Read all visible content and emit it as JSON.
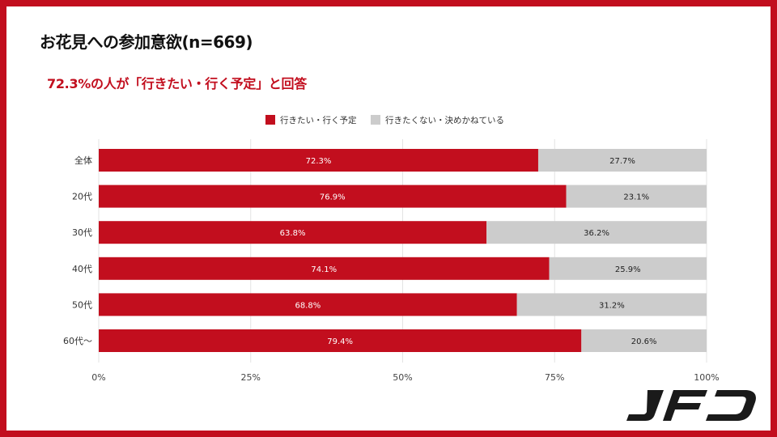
{
  "title": "お花見への参加意欲(n=669)",
  "subtitle": "72.3%の人が「行きたい・行く予定」と回答",
  "logo_text": "JFD",
  "colors": {
    "accent": "#c20e1e",
    "series1": "#c20e1e",
    "series2": "#cccccc"
  },
  "chart_data": {
    "type": "bar",
    "orientation": "horizontal",
    "stacked": true,
    "categories": [
      "全体",
      "20代",
      "30代",
      "40代",
      "50代",
      "60代～"
    ],
    "series": [
      {
        "name": "行きたい・行く予定",
        "values": [
          72.3,
          76.9,
          63.8,
          74.1,
          68.8,
          79.4
        ],
        "labels": [
          "72.3%",
          "76.9%",
          "63.8%",
          "74.1%",
          "68.8%",
          "79.4%"
        ]
      },
      {
        "name": "行きたくない・決めかねている",
        "values": [
          27.7,
          23.1,
          36.2,
          25.9,
          31.2,
          20.6
        ],
        "labels": [
          "27.7%",
          "23.1%",
          "36.2%",
          "25.9%",
          "31.2%",
          "20.6%"
        ]
      }
    ],
    "xticks": [
      "0%",
      "25%",
      "50%",
      "75%",
      "100%"
    ],
    "xlim": [
      0,
      100
    ],
    "legend_position": "top"
  }
}
